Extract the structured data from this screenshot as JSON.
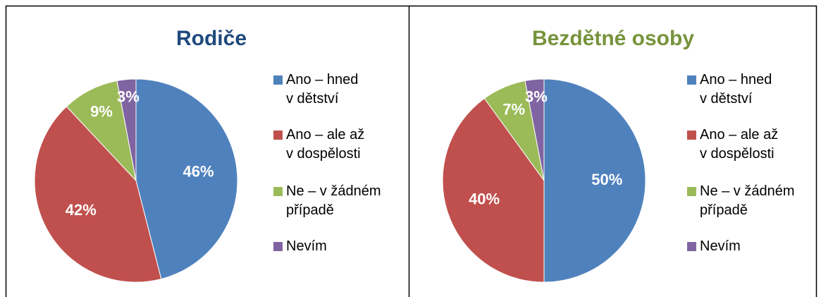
{
  "chart_data": [
    {
      "type": "pie",
      "title": "Rodiče",
      "title_color": "#1f497d",
      "categories": [
        "Ano – hned\nv dětství",
        "Ano – ale až\nv dospělosti",
        "Ne – v žádném\npřípadě",
        "Nevím"
      ],
      "values": [
        46,
        42,
        9,
        3
      ],
      "value_labels": [
        "46%",
        "42%",
        "9%",
        "3%"
      ],
      "colors": [
        "#4f81bd",
        "#c0504d",
        "#9bbb59",
        "#8064a2"
      ]
    },
    {
      "type": "pie",
      "title": "Bezdětné osoby",
      "title_color": "#77933c",
      "categories": [
        "Ano – hned\nv dětství",
        "Ano – ale až\nv dospělosti",
        "Ne – v žádném\npřípadě",
        "Nevím"
      ],
      "values": [
        50,
        40,
        7,
        3
      ],
      "value_labels": [
        "50%",
        "40%",
        "7%",
        "3%"
      ],
      "colors": [
        "#4f81bd",
        "#c0504d",
        "#9bbb59",
        "#8064a2"
      ]
    }
  ]
}
